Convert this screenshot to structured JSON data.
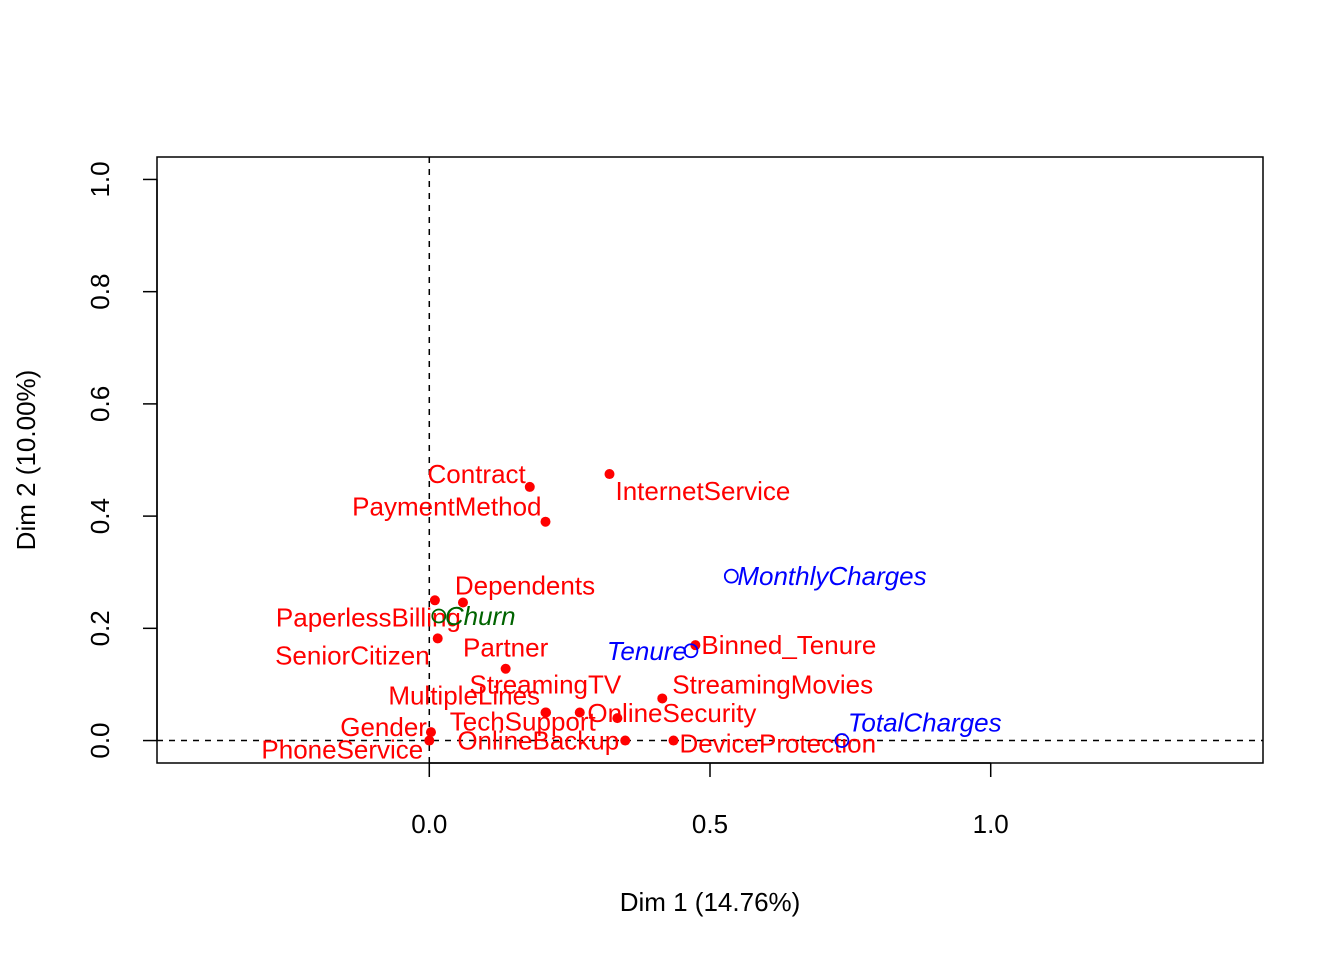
{
  "chart_data": {
    "type": "scatter",
    "title": "",
    "xlabel": "Dim 1 (14.76%)",
    "ylabel": "Dim 2 (10.00%)",
    "xlim": [
      -0.485,
      1.485
    ],
    "ylim": [
      -0.04,
      1.04
    ],
    "x_ticks": [
      {
        "v": 0.0,
        "label": "0.0"
      },
      {
        "v": 0.5,
        "label": "0.5"
      },
      {
        "v": 1.0,
        "label": "1.0"
      }
    ],
    "y_ticks": [
      {
        "v": 0.0,
        "label": "0.0"
      },
      {
        "v": 0.2,
        "label": "0.2"
      },
      {
        "v": 0.4,
        "label": "0.4"
      },
      {
        "v": 0.6,
        "label": "0.6"
      },
      {
        "v": 0.8,
        "label": "0.8"
      },
      {
        "v": 1.0,
        "label": "1.0"
      }
    ],
    "reference_lines": {
      "x": 0,
      "y": 0,
      "style": "dashed"
    },
    "colors": {
      "categorical": "#ff0000",
      "quantitative": "#0000ff",
      "supplementary": "#006400"
    },
    "points": [
      {
        "label": "Contract",
        "x": 0.179,
        "y": 0.452,
        "group": "categorical",
        "marker": "filled",
        "anchor": "end",
        "dx": -4,
        "dy": -4
      },
      {
        "label": "InternetService",
        "x": 0.321,
        "y": 0.475,
        "group": "categorical",
        "marker": "filled",
        "anchor": "start",
        "dx": 6,
        "dy": 26
      },
      {
        "label": "PaymentMethod",
        "x": 0.207,
        "y": 0.39,
        "group": "categorical",
        "marker": "filled",
        "anchor": "end",
        "dx": -4,
        "dy": -6
      },
      {
        "label": "Dependents",
        "x": 0.06,
        "y": 0.246,
        "group": "categorical",
        "marker": "filled",
        "anchor": "middle",
        "dx": 62,
        "dy": -8
      },
      {
        "label": "PaperlessBilling",
        "x": 0.01,
        "y": 0.25,
        "group": "categorical",
        "marker": "filled",
        "anchor": "end",
        "dx": 26,
        "dy": 26
      },
      {
        "label": "SeniorCitizen",
        "x": 0.015,
        "y": 0.182,
        "group": "categorical",
        "marker": "filled",
        "anchor": "end",
        "dx": -8,
        "dy": 26
      },
      {
        "label": "Partner",
        "x": 0.136,
        "y": 0.128,
        "group": "categorical",
        "marker": "filled",
        "anchor": "middle",
        "dx": 0,
        "dy": -12
      },
      {
        "label": "Binned_Tenure",
        "x": 0.474,
        "y": 0.17,
        "group": "categorical",
        "marker": "filled",
        "anchor": "start",
        "dx": 6,
        "dy": 9
      },
      {
        "label": "StreamingTV",
        "x": 0.207,
        "y": 0.05,
        "group": "categorical",
        "marker": "filled",
        "anchor": "start",
        "dx": -76,
        "dy": -19
      },
      {
        "label": "StreamingMovies",
        "x": 0.415,
        "y": 0.075,
        "group": "categorical",
        "marker": "filled",
        "anchor": "start",
        "dx": 10,
        "dy": -5
      },
      {
        "label": "MultipleLines",
        "x": 0.208,
        "y": 0.05,
        "group": "categorical",
        "marker": "filled",
        "anchor": "end",
        "dx": -6,
        "dy": -8
      },
      {
        "label": "TechSupport",
        "x": 0.268,
        "y": 0.05,
        "group": "categorical",
        "marker": "filled",
        "anchor": "end",
        "dx": 16,
        "dy": 18
      },
      {
        "label": "OnlineSecurity",
        "x": 0.335,
        "y": 0.04,
        "group": "categorical",
        "marker": "filled",
        "anchor": "start",
        "dx": -30,
        "dy": 4
      },
      {
        "label": "OnlineBackup",
        "x": 0.349,
        "y": 0.0,
        "group": "categorical",
        "marker": "filled",
        "anchor": "end",
        "dx": -6,
        "dy": 9
      },
      {
        "label": "DeviceProtection",
        "x": 0.435,
        "y": 0.0,
        "group": "categorical",
        "marker": "filled",
        "anchor": "start",
        "dx": 6,
        "dy": 12
      },
      {
        "label": "Gender",
        "x": 0.003,
        "y": 0.015,
        "group": "categorical",
        "marker": "filled",
        "anchor": "end",
        "dx": -4,
        "dy": 4
      },
      {
        "label": "PhoneService",
        "x": 0.0,
        "y": 0.0,
        "group": "categorical",
        "marker": "filled",
        "anchor": "end",
        "dx": -6,
        "dy": 18
      },
      {
        "label": "MonthlyCharges",
        "x": 0.538,
        "y": 0.293,
        "group": "quantitative",
        "marker": "open",
        "anchor": "start",
        "dx": 6,
        "dy": 9
      },
      {
        "label": "Tenure",
        "x": 0.466,
        "y": 0.16,
        "group": "quantitative",
        "marker": "open",
        "anchor": "end",
        "dx": -4,
        "dy": 9
      },
      {
        "label": "TotalCharges",
        "x": 0.735,
        "y": 0.0,
        "group": "quantitative",
        "marker": "open",
        "anchor": "start",
        "dx": 6,
        "dy": -9
      },
      {
        "label": "Churn",
        "x": 0.017,
        "y": 0.222,
        "group": "supplementary",
        "marker": "open",
        "anchor": "start",
        "dx": 6,
        "dy": 9
      }
    ]
  }
}
